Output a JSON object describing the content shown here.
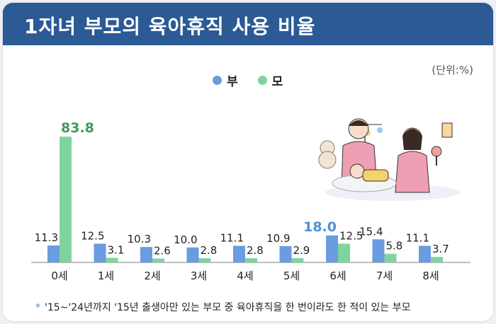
{
  "header": {
    "title": "1자녀 부모의 육아휴직 사용 비율"
  },
  "unit_label": "(단위:%)",
  "legend": [
    {
      "label": "부",
      "color": "#6b9be0"
    },
    {
      "label": "모",
      "color": "#7fd49e"
    }
  ],
  "footnote": {
    "marker": "*",
    "text": "'15~'24년까지 '15년 출생아만 있는 부모 중 육아휴직을 한 번이라도 한 적이 있는 부모"
  },
  "chart_data": {
    "type": "bar",
    "categories": [
      "0세",
      "1세",
      "2세",
      "3세",
      "4세",
      "5세",
      "6세",
      "7세",
      "8세"
    ],
    "series": [
      {
        "name": "부",
        "values": [
          11.3,
          12.5,
          10.3,
          10.0,
          11.1,
          10.9,
          18.0,
          15.4,
          11.1
        ],
        "color": "#6b9be0"
      },
      {
        "name": "모",
        "values": [
          83.8,
          3.1,
          2.6,
          2.8,
          2.8,
          2.9,
          12.5,
          5.8,
          3.7
        ],
        "color": "#7fd49e"
      }
    ],
    "value_labels": {
      "부": [
        "11.3",
        "12.5",
        "10.3",
        "10.0",
        "11.1",
        "10.9",
        "18.0",
        "15.4",
        "11.1"
      ],
      "모": [
        "83.8",
        "3.1",
        "2.6",
        "2.8",
        "2.8",
        "2.9",
        "12.5",
        "5.8",
        "3.7"
      ]
    },
    "highlight": {
      "부": "18.0",
      "모": "83.8"
    },
    "highlight_colors": {
      "부": "#4f8fd8",
      "모": "#3f9a5c"
    },
    "ylim": [
      0,
      90
    ],
    "grid": false
  }
}
